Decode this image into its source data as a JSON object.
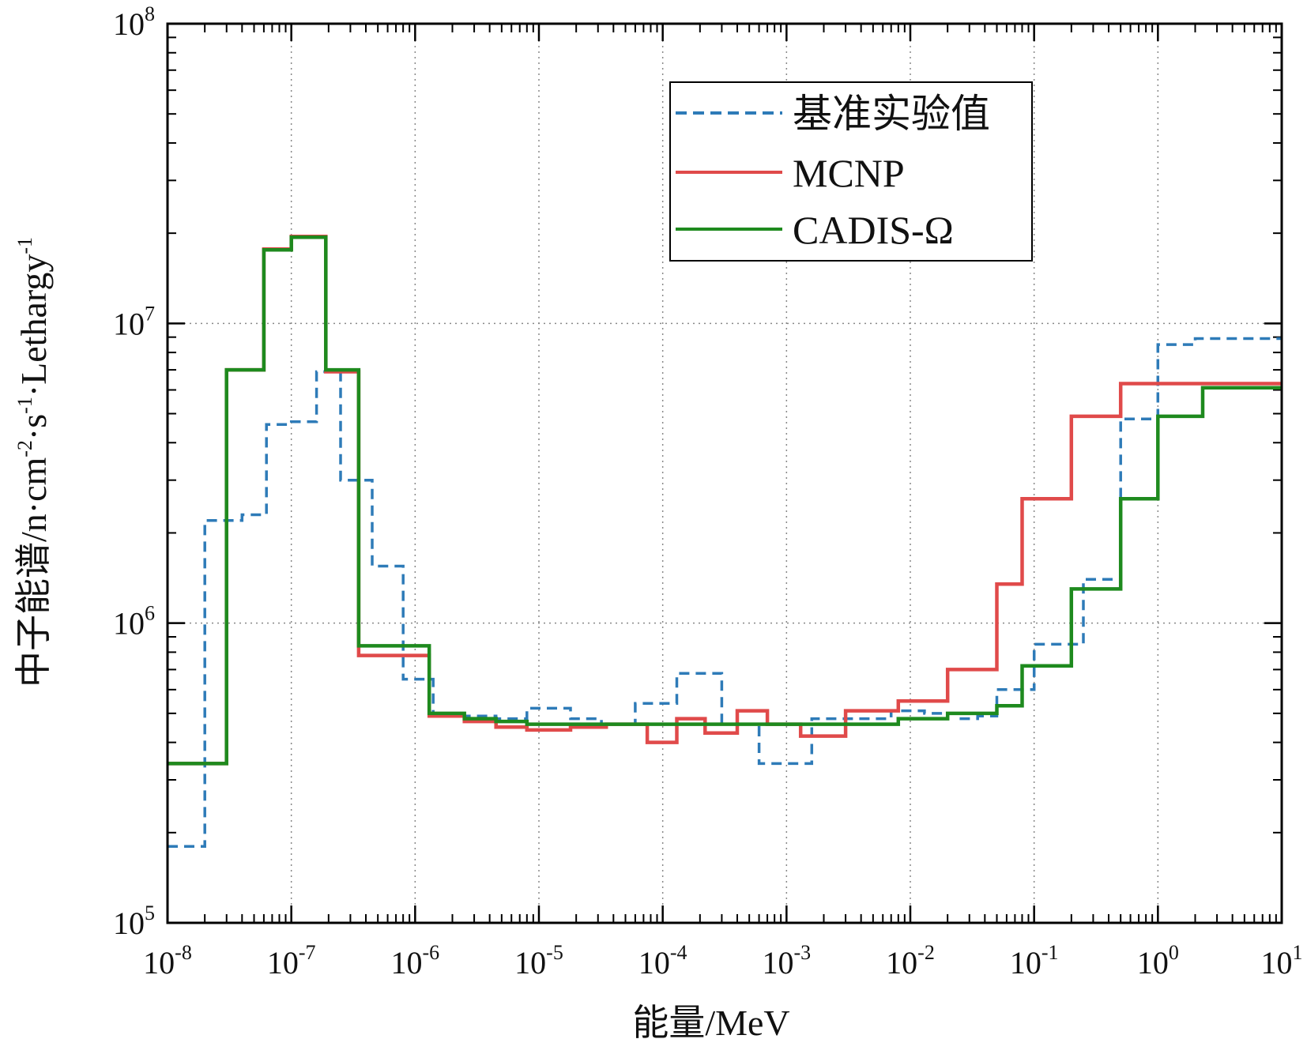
{
  "chart_data": {
    "type": "line",
    "subtype": "step",
    "xscale": "log",
    "yscale": "log",
    "xlim": [
      1e-08,
      10
    ],
    "ylim": [
      100000,
      100000000
    ],
    "xlabel": "能量/MeV",
    "ylabel": {
      "parts": [
        "中子能谱/n·cm",
        "-2",
        "·s",
        "-1",
        "·Lethargy",
        "-1"
      ]
    },
    "grid": true,
    "legend_position": "top-right",
    "x_ticks": [
      {
        "base": "10",
        "exp": "-8"
      },
      {
        "base": "10",
        "exp": "-7"
      },
      {
        "base": "10",
        "exp": "-6"
      },
      {
        "base": "10",
        "exp": "-5"
      },
      {
        "base": "10",
        "exp": "-4"
      },
      {
        "base": "10",
        "exp": "-3"
      },
      {
        "base": "10",
        "exp": "-2"
      },
      {
        "base": "10",
        "exp": "-1"
      },
      {
        "base": "10",
        "exp": "0"
      },
      {
        "base": "10",
        "exp": "1"
      }
    ],
    "y_ticks": [
      {
        "base": "10",
        "exp": "5"
      },
      {
        "base": "10",
        "exp": "6"
      },
      {
        "base": "10",
        "exp": "7"
      },
      {
        "base": "10",
        "exp": "8"
      }
    ],
    "series": [
      {
        "name": "基准实验值",
        "color": "#2e7bb8",
        "style": "dashed",
        "edges": [
          1e-08,
          2e-08,
          4e-08,
          6.3e-08,
          1e-07,
          1.6e-07,
          2.5e-07,
          4.5e-07,
          8e-07,
          1.4e-06,
          2.5e-06,
          4.5e-06,
          8e-06,
          1.8e-05,
          3.2e-05,
          6e-05,
          0.00013,
          0.0003,
          0.0006,
          0.0016,
          0.003,
          0.007,
          0.013,
          0.025,
          0.035,
          0.05,
          0.1,
          0.25,
          0.5,
          1,
          2,
          3.5,
          10
        ],
        "values": [
          180000,
          2200000,
          2300000,
          4600000,
          4700000,
          6900000,
          3000000,
          1550000,
          650000,
          500000,
          490000,
          480000,
          520000,
          480000,
          460000,
          540000,
          680000,
          460000,
          340000,
          480000,
          480000,
          510000,
          500000,
          480000,
          490000,
          600000,
          850000,
          1400000,
          4800000,
          8500000,
          8900000,
          8900000
        ]
      },
      {
        "name": "MCNP",
        "color": "#e04a4a",
        "style": "solid",
        "edges": [
          1e-08,
          3e-08,
          6e-08,
          1e-07,
          1.9e-07,
          3.5e-07,
          1.3e-06,
          2.5e-06,
          4.5e-06,
          8e-06,
          1.8e-05,
          3.5e-05,
          7.5e-05,
          0.00013,
          0.00022,
          0.0004,
          0.0007,
          0.0013,
          0.003,
          0.008,
          0.02,
          0.05,
          0.08,
          0.2,
          0.5,
          1,
          2.3,
          4.5,
          10
        ],
        "values": [
          340000,
          7000000,
          17700000,
          19500000,
          6900000,
          780000,
          490000,
          470000,
          450000,
          440000,
          450000,
          460000,
          400000,
          480000,
          430000,
          510000,
          460000,
          420000,
          510000,
          550000,
          700000,
          1350000,
          2600000,
          4900000,
          6300000,
          6300000,
          6300000,
          6300000
        ]
      },
      {
        "name": "CADIS-Ω",
        "color": "#1e8a1e",
        "style": "solid",
        "edges": [
          1e-08,
          3e-08,
          6e-08,
          1e-07,
          1.9e-07,
          3.5e-07,
          1.3e-06,
          2.5e-06,
          4.5e-06,
          8e-06,
          1.8e-05,
          3.5e-05,
          7.5e-05,
          0.00013,
          0.00022,
          0.0004,
          0.0007,
          0.0013,
          0.003,
          0.008,
          0.02,
          0.05,
          0.08,
          0.2,
          0.5,
          1,
          2.3,
          4.5,
          10
        ],
        "values": [
          340000,
          7000000,
          17600000,
          19400000,
          7000000,
          840000,
          500000,
          480000,
          470000,
          460000,
          460000,
          460000,
          460000,
          460000,
          460000,
          460000,
          460000,
          460000,
          460000,
          480000,
          500000,
          530000,
          720000,
          1300000,
          2600000,
          4900000,
          6100000,
          6100000
        ]
      }
    ],
    "legend_entries": [
      "基准实验值",
      "MCNP",
      "CADIS-Ω"
    ]
  }
}
